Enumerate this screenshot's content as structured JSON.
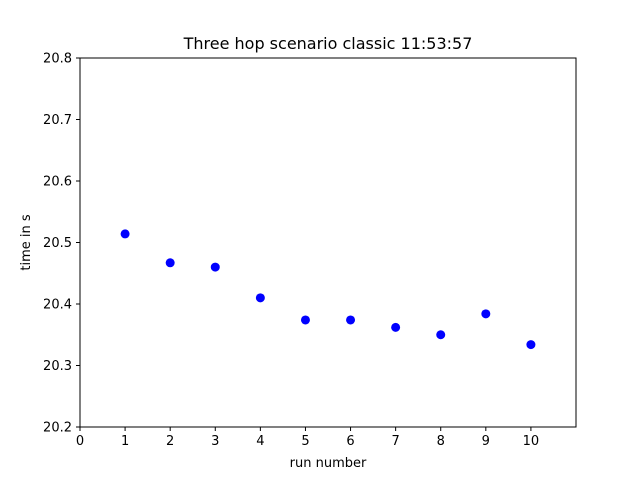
{
  "chart_data": {
    "type": "scatter",
    "title": "Three hop scenario classic 11:53:57",
    "xlabel": "run number",
    "ylabel": "time in s",
    "xlim": [
      0,
      11
    ],
    "ylim": [
      20.2,
      20.8
    ],
    "x_ticks": [
      "0",
      "1",
      "2",
      "3",
      "4",
      "5",
      "6",
      "7",
      "8",
      "9",
      "10"
    ],
    "y_ticks": [
      "20.2",
      "20.3",
      "20.4",
      "20.5",
      "20.6",
      "20.7",
      "20.8"
    ],
    "grid": false,
    "series": [
      {
        "color": "#0000ff",
        "marker": "circle",
        "x": [
          1,
          2,
          3,
          4,
          5,
          6,
          7,
          8,
          9,
          10
        ],
        "y": [
          20.514,
          20.467,
          20.46,
          20.41,
          20.374,
          20.374,
          20.362,
          20.35,
          20.384,
          20.334
        ]
      }
    ]
  }
}
